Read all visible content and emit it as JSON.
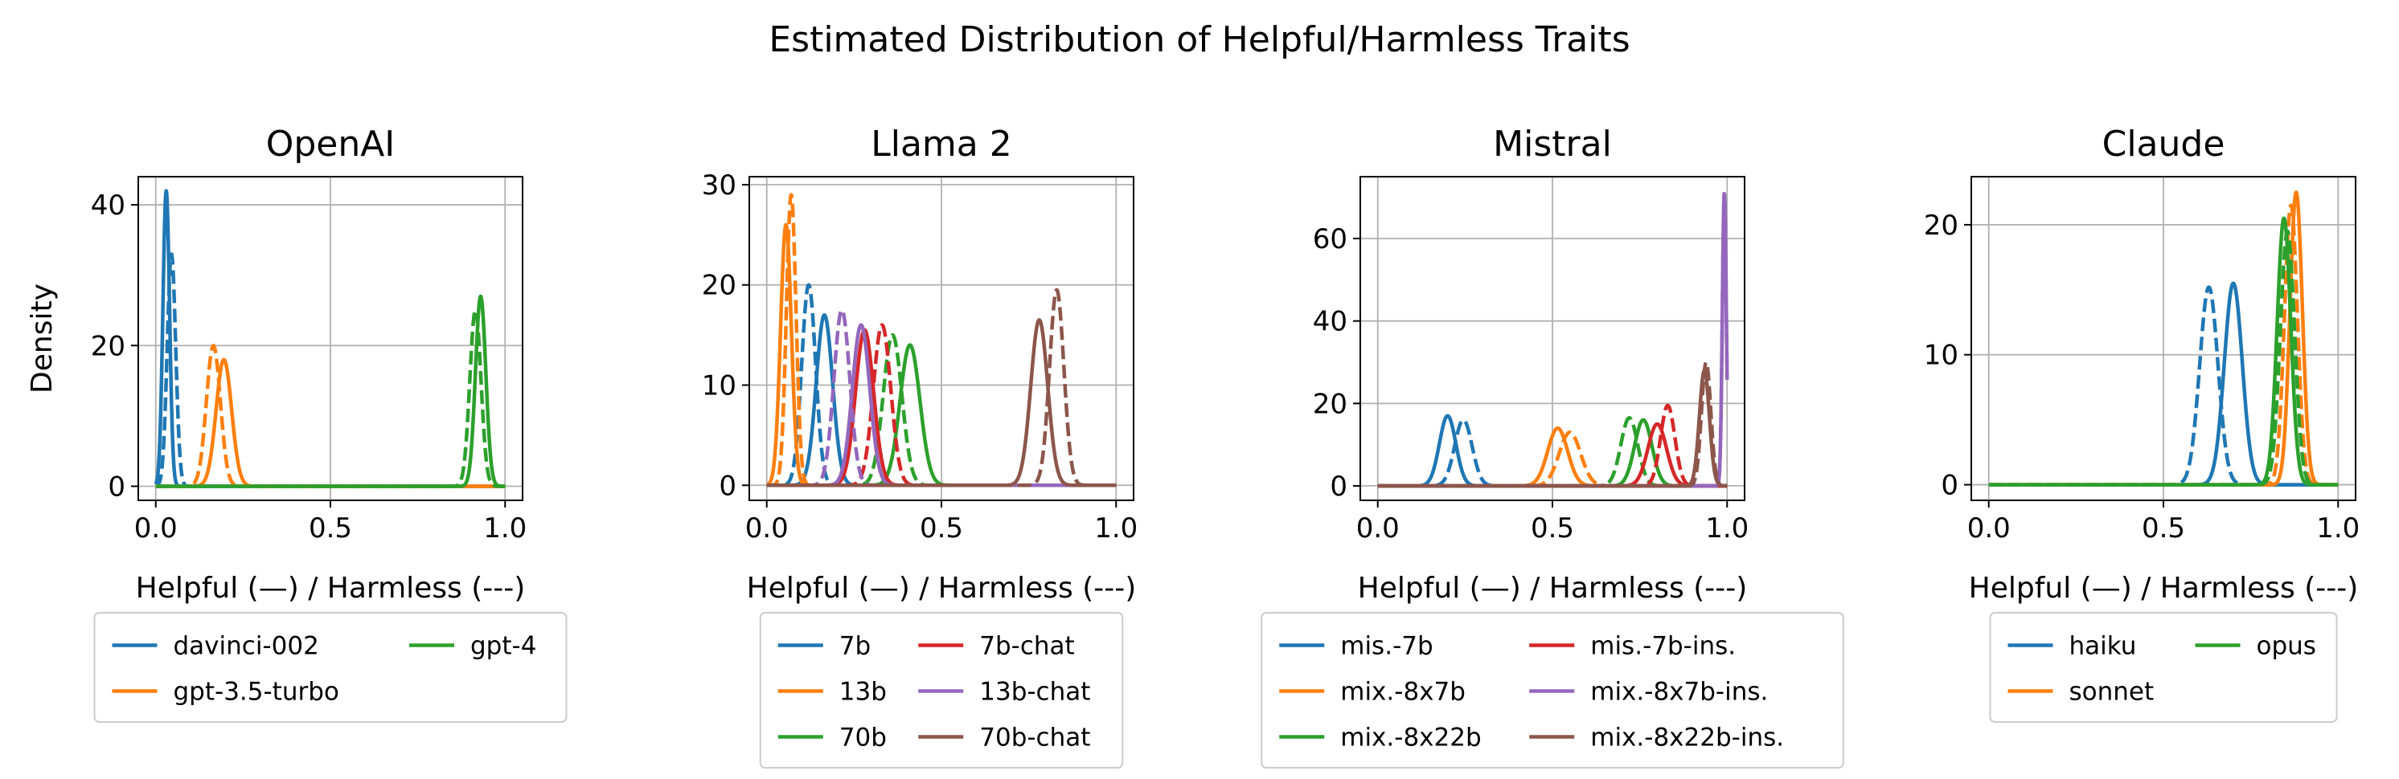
{
  "figure": {
    "title": "Estimated Distribution of Helpful/Harmless Traits"
  },
  "chart_data": [
    {
      "type": "line",
      "title": "OpenAI",
      "xlabel": "Helpful (—) / Harmless (---)",
      "ylabel": "Density",
      "xlim": [
        -0.05,
        1.05
      ],
      "ylim": [
        -2,
        44
      ],
      "xticks": [
        0.0,
        0.5,
        1.0
      ],
      "xtick_labels": [
        "0.0",
        "0.5",
        "1.0"
      ],
      "yticks": [
        0,
        20,
        40
      ],
      "ytick_labels": [
        "0",
        "20",
        "40"
      ],
      "grid": true,
      "legend": {
        "placement": "below",
        "columns": 2,
        "entries": [
          {
            "name": "davinci-002",
            "color": "#1f77b4"
          },
          {
            "name": "gpt-3.5-turbo",
            "color": "#ff7f0e"
          },
          {
            "name": "gpt-4",
            "color": "#2ca02c"
          }
        ]
      },
      "series": [
        {
          "name": "davinci-002",
          "color": "#1f77b4",
          "helpful": {
            "mean": 0.03,
            "peak": 42
          },
          "harmless": {
            "mean": 0.045,
            "peak": 33
          }
        },
        {
          "name": "gpt-3.5-turbo",
          "color": "#ff7f0e",
          "helpful": {
            "mean": 0.195,
            "peak": 18
          },
          "harmless": {
            "mean": 0.165,
            "peak": 20
          }
        },
        {
          "name": "gpt-4",
          "color": "#2ca02c",
          "helpful": {
            "mean": 0.93,
            "peak": 27
          },
          "harmless": {
            "mean": 0.915,
            "peak": 25
          }
        }
      ]
    },
    {
      "type": "line",
      "title": "Llama 2",
      "xlabel": "Helpful (—) / Harmless (---)",
      "ylabel": "",
      "xlim": [
        -0.05,
        1.05
      ],
      "ylim": [
        -1.5,
        30.8
      ],
      "xticks": [
        0.0,
        0.5,
        1.0
      ],
      "xtick_labels": [
        "0.0",
        "0.5",
        "1.0"
      ],
      "yticks": [
        0,
        10,
        20,
        30
      ],
      "ytick_labels": [
        "0",
        "10",
        "20",
        "30"
      ],
      "grid": true,
      "legend": {
        "placement": "below",
        "columns": 2,
        "entries": [
          {
            "name": "7b",
            "color": "#1f77b4"
          },
          {
            "name": "13b",
            "color": "#ff7f0e"
          },
          {
            "name": "70b",
            "color": "#2ca02c"
          },
          {
            "name": "7b-chat",
            "color": "#d62728"
          },
          {
            "name": "13b-chat",
            "color": "#9467bd"
          },
          {
            "name": "70b-chat",
            "color": "#8c564b"
          }
        ]
      },
      "series": [
        {
          "name": "7b",
          "color": "#1f77b4",
          "helpful": {
            "mean": 0.165,
            "peak": 17
          },
          "harmless": {
            "mean": 0.12,
            "peak": 20
          }
        },
        {
          "name": "13b",
          "color": "#ff7f0e",
          "helpful": {
            "mean": 0.055,
            "peak": 26
          },
          "harmless": {
            "mean": 0.07,
            "peak": 29
          }
        },
        {
          "name": "70b",
          "color": "#2ca02c",
          "helpful": {
            "mean": 0.41,
            "peak": 14
          },
          "harmless": {
            "mean": 0.36,
            "peak": 15
          }
        },
        {
          "name": "7b-chat",
          "color": "#d62728",
          "helpful": {
            "mean": 0.28,
            "peak": 15.5
          },
          "harmless": {
            "mean": 0.33,
            "peak": 16
          }
        },
        {
          "name": "13b-chat",
          "color": "#9467bd",
          "helpful": {
            "mean": 0.27,
            "peak": 16
          },
          "harmless": {
            "mean": 0.215,
            "peak": 17.5
          }
        },
        {
          "name": "70b-chat",
          "color": "#8c564b",
          "helpful": {
            "mean": 0.78,
            "peak": 16.5
          },
          "harmless": {
            "mean": 0.83,
            "peak": 19.5
          }
        }
      ]
    },
    {
      "type": "line",
      "title": "Mistral",
      "xlabel": "Helpful (—) / Harmless (---)",
      "ylabel": "",
      "xlim": [
        -0.05,
        1.05
      ],
      "ylim": [
        -3.5,
        75
      ],
      "xticks": [
        0.0,
        0.5,
        1.0
      ],
      "xtick_labels": [
        "0.0",
        "0.5",
        "1.0"
      ],
      "yticks": [
        0,
        20,
        40,
        60
      ],
      "ytick_labels": [
        "0",
        "20",
        "40",
        "60"
      ],
      "grid": true,
      "legend": {
        "placement": "below",
        "columns": 2,
        "entries": [
          {
            "name": "mis.-7b",
            "color": "#1f77b4"
          },
          {
            "name": "mix.-8x7b",
            "color": "#ff7f0e"
          },
          {
            "name": "mix.-8x22b",
            "color": "#2ca02c"
          },
          {
            "name": "mis.-7b-ins.",
            "color": "#d62728"
          },
          {
            "name": "mix.-8x7b-ins.",
            "color": "#9467bd"
          },
          {
            "name": "mix.-8x22b-ins.",
            "color": "#8c564b"
          }
        ]
      },
      "series": [
        {
          "name": "mis.-7b",
          "color": "#1f77b4",
          "helpful": {
            "mean": 0.2,
            "peak": 17
          },
          "harmless": {
            "mean": 0.245,
            "peak": 16
          }
        },
        {
          "name": "mix.-8x7b",
          "color": "#ff7f0e",
          "helpful": {
            "mean": 0.515,
            "peak": 14
          },
          "harmless": {
            "mean": 0.55,
            "peak": 13
          }
        },
        {
          "name": "mix.-8x22b",
          "color": "#2ca02c",
          "helpful": {
            "mean": 0.76,
            "peak": 16
          },
          "harmless": {
            "mean": 0.72,
            "peak": 16.5
          }
        },
        {
          "name": "mis.-7b-ins.",
          "color": "#d62728",
          "helpful": {
            "mean": 0.8,
            "peak": 15
          },
          "harmless": {
            "mean": 0.83,
            "peak": 19.5
          }
        },
        {
          "name": "mix.-8x7b-ins.",
          "color": "#9467bd",
          "helpful": {
            "mean": 0.992,
            "peak": 71
          },
          "harmless": {
            "mean": 0.992,
            "peak": 71
          }
        },
        {
          "name": "mix.-8x22b-ins.",
          "color": "#8c564b",
          "helpful": {
            "mean": 0.935,
            "peak": 28
          },
          "harmless": {
            "mean": 0.94,
            "peak": 30
          }
        }
      ]
    },
    {
      "type": "line",
      "title": "Claude",
      "xlabel": "Helpful (—) / Harmless (---)",
      "ylabel": "",
      "xlim": [
        -0.05,
        1.05
      ],
      "ylim": [
        -1.2,
        23.7
      ],
      "xticks": [
        0.0,
        0.5,
        1.0
      ],
      "xtick_labels": [
        "0.0",
        "0.5",
        "1.0"
      ],
      "yticks": [
        0,
        10,
        20
      ],
      "ytick_labels": [
        "0",
        "10",
        "20"
      ],
      "grid": true,
      "legend": {
        "placement": "below",
        "columns": 2,
        "entries": [
          {
            "name": "haiku",
            "color": "#1f77b4"
          },
          {
            "name": "sonnet",
            "color": "#ff7f0e"
          },
          {
            "name": "opus",
            "color": "#2ca02c"
          }
        ]
      },
      "series": [
        {
          "name": "haiku",
          "color": "#1f77b4",
          "helpful": {
            "mean": 0.7,
            "peak": 15.5
          },
          "harmless": {
            "mean": 0.63,
            "peak": 15.2
          }
        },
        {
          "name": "sonnet",
          "color": "#ff7f0e",
          "helpful": {
            "mean": 0.88,
            "peak": 22.5
          },
          "harmless": {
            "mean": 0.865,
            "peak": 21.5
          }
        },
        {
          "name": "opus",
          "color": "#2ca02c",
          "helpful": {
            "mean": 0.845,
            "peak": 20.5
          },
          "harmless": {
            "mean": 0.855,
            "peak": 19.5
          }
        }
      ]
    }
  ]
}
